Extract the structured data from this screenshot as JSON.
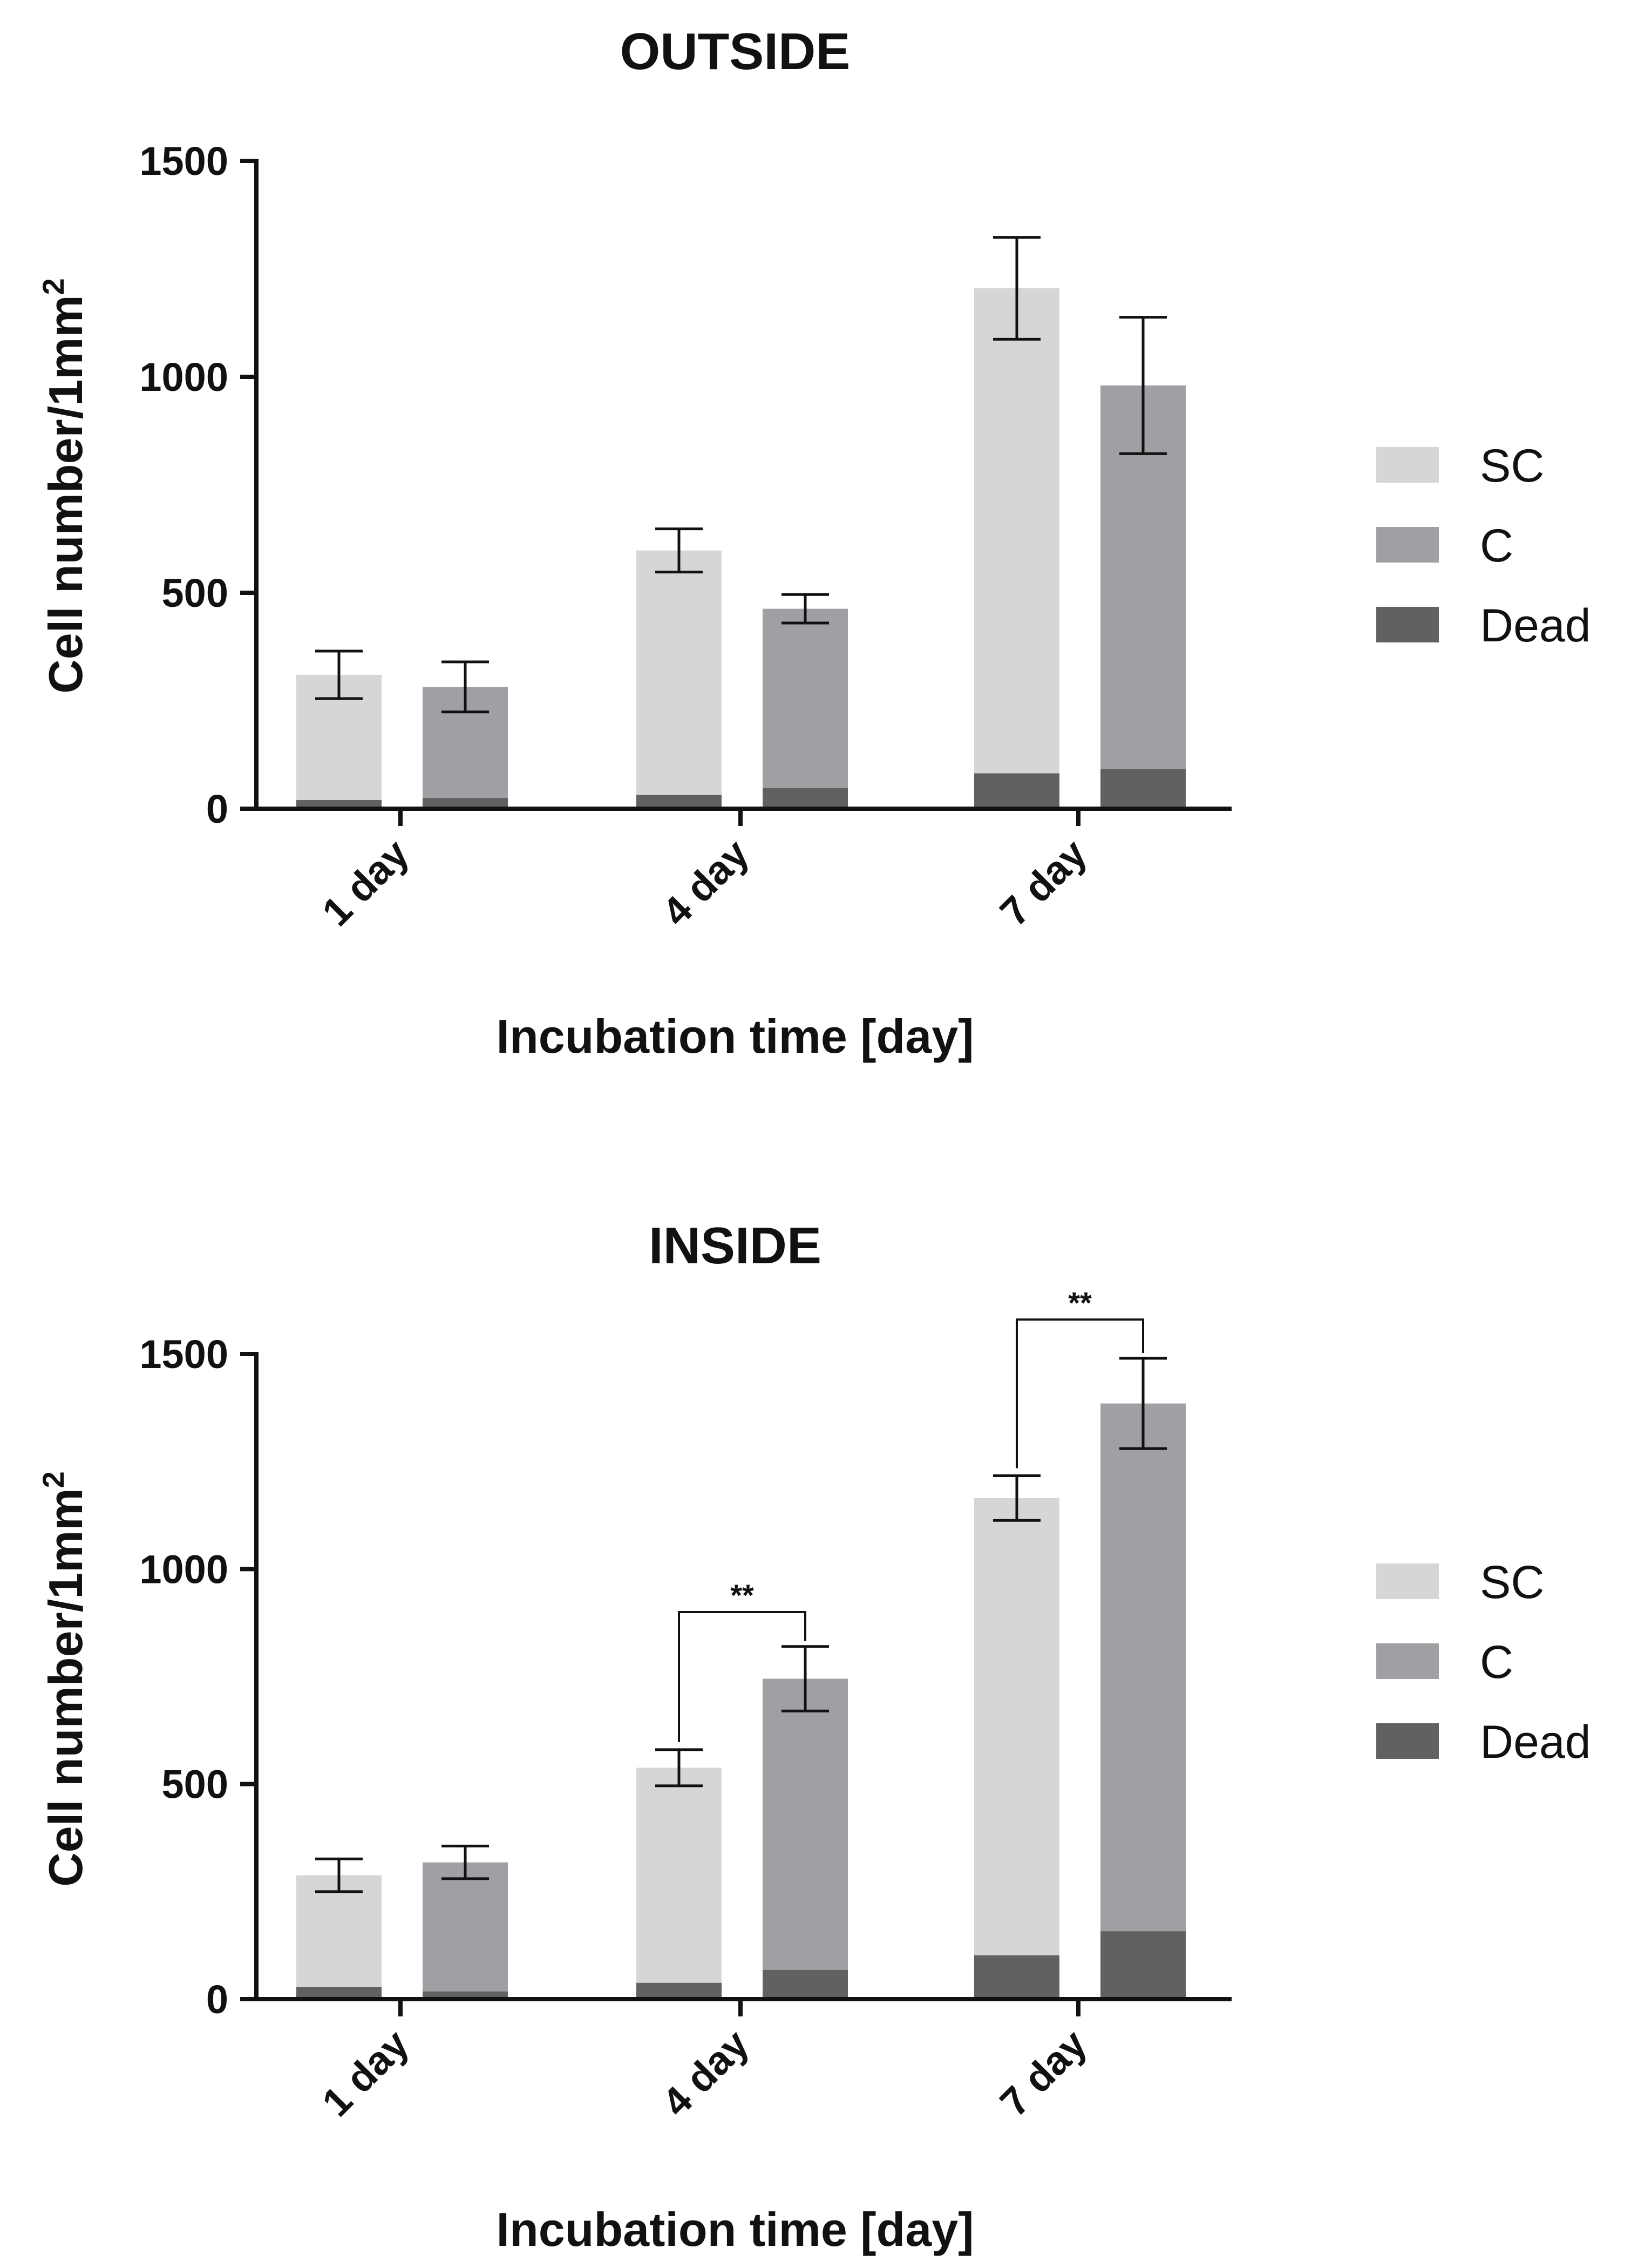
{
  "chart_data": [
    {
      "type": "bar",
      "stacked": true,
      "title": "OUTSIDE",
      "xlabel": "Incubation time [day]",
      "ylabel": "Cell number/1mm",
      "ylabel_superscript": "2",
      "ylim": [
        0,
        1500
      ],
      "yticks": [
        0,
        500,
        1000,
        1500
      ],
      "categories": [
        "1 day",
        "4 day",
        "7 day"
      ],
      "groups": [
        "SC",
        "C"
      ],
      "legend": [
        "SC",
        "C",
        "Dead"
      ],
      "legend_position": "right",
      "bars": [
        {
          "category": "1 day",
          "group": "SC",
          "total": 310,
          "error": 55,
          "dead": 20
        },
        {
          "category": "1 day",
          "group": "C",
          "total": 282,
          "error": 58,
          "dead": 25
        },
        {
          "category": "4 day",
          "group": "SC",
          "total": 598,
          "error": 50,
          "dead": 32
        },
        {
          "category": "4 day",
          "group": "C",
          "total": 463,
          "error": 33,
          "dead": 48
        },
        {
          "category": "7 day",
          "group": "SC",
          "total": 1205,
          "error": 118,
          "dead": 82
        },
        {
          "category": "7 day",
          "group": "C",
          "total": 980,
          "error": 158,
          "dead": 92
        }
      ],
      "significance": []
    },
    {
      "type": "bar",
      "stacked": true,
      "title": "INSIDE",
      "xlabel": "Incubation time [day]",
      "ylabel": "Cell number/1mm",
      "ylabel_superscript": "2",
      "ylim": [
        0,
        1500
      ],
      "yticks": [
        0,
        500,
        1000,
        1500
      ],
      "categories": [
        "1 day",
        "4 day",
        "7 day"
      ],
      "groups": [
        "SC",
        "C"
      ],
      "legend": [
        "SC",
        "C",
        "Dead"
      ],
      "legend_position": "right",
      "bars": [
        {
          "category": "1 day",
          "group": "SC",
          "total": 288,
          "error": 38,
          "dead": 28
        },
        {
          "category": "1 day",
          "group": "C",
          "total": 318,
          "error": 38,
          "dead": 18
        },
        {
          "category": "4 day",
          "group": "SC",
          "total": 538,
          "error": 42,
          "dead": 38
        },
        {
          "category": "4 day",
          "group": "C",
          "total": 745,
          "error": 75,
          "dead": 68
        },
        {
          "category": "7 day",
          "group": "SC",
          "total": 1165,
          "error": 52,
          "dead": 102
        },
        {
          "category": "7 day",
          "group": "C",
          "total": 1385,
          "error": 105,
          "dead": 158
        }
      ],
      "significance": [
        {
          "category": "4 day",
          "label": "**",
          "line_value": 900
        },
        {
          "category": "7 day",
          "label": "**",
          "line_value": 1580
        }
      ]
    }
  ],
  "colors": {
    "SC": "#d6d6d6",
    "C": "#a0a0a4",
    "Dead": "#616161",
    "axis": "#111111"
  }
}
